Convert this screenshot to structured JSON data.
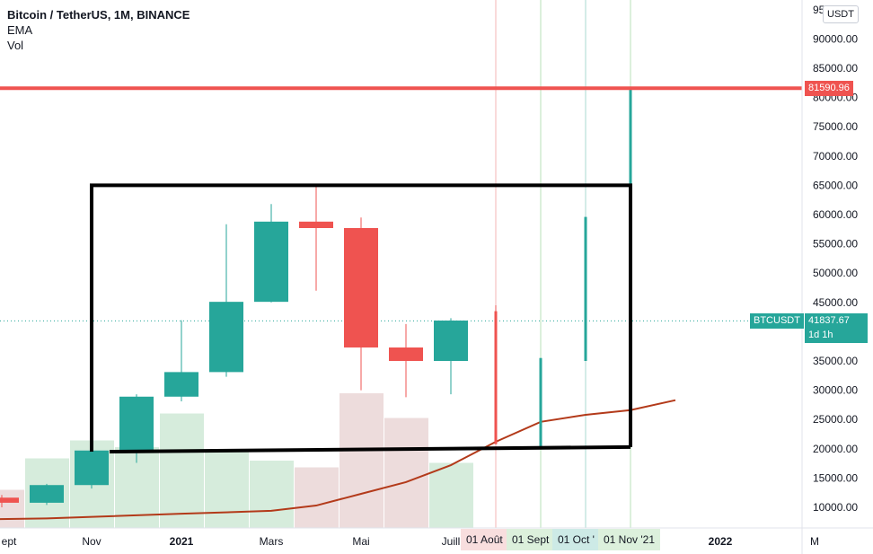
{
  "legend": {
    "title": "Bitcoin / TetherUS, 1M, BINANCE",
    "line2": "EMA",
    "line3": "Vol"
  },
  "currency_button": "USDT",
  "colors": {
    "up": "#26a69a",
    "down": "#ef5350",
    "ema": "#b33a1a",
    "horizontal_line": "#ef5350",
    "box": "#000000",
    "vol_up": "#d6ecdc",
    "vol_down": "#eddcdc",
    "last_price_tag": "#26a69a"
  },
  "price_tags": {
    "horizontal_line_value": "81590.96",
    "symbol": "BTCUSDT",
    "last_price": "41837.67",
    "countdown": "1d 1h"
  },
  "time_tags": [
    "01 Août",
    "01 Sept",
    "01 Oct '",
    "01 Nov '21"
  ],
  "chart_data": {
    "type": "candlestick",
    "title": "Bitcoin / TetherUS, 1M, BINANCE",
    "indicators": [
      "EMA",
      "Vol"
    ],
    "x_axis_labels": [
      "ept",
      "Nov",
      "2021",
      "Mars",
      "Mai",
      "Juill",
      "01 Août",
      "01 Sept",
      "01 Oct '",
      "01 Nov '21",
      "2022",
      "M"
    ],
    "y_axis_labels": [
      "95",
      "90000.00",
      "85000.00",
      "80000.00",
      "75000.00",
      "70000.00",
      "65000.00",
      "60000.00",
      "55000.00",
      "50000.00",
      "45000.00",
      "40000.00",
      "35000.00",
      "30000.00",
      "25000.00",
      "20000.00",
      "15000.00",
      "10000.00"
    ],
    "ylim": [
      5000,
      95000
    ],
    "grid": false,
    "candles": [
      {
        "date": "2020-09",
        "open": 11650,
        "high": 12100,
        "low": 10000,
        "close": 10780
      },
      {
        "date": "2020-10",
        "open": 10780,
        "high": 14000,
        "low": 10400,
        "close": 13800
      },
      {
        "date": "2020-11",
        "open": 13800,
        "high": 19860,
        "low": 13200,
        "close": 19700
      },
      {
        "date": "2020-12",
        "open": 19700,
        "high": 29300,
        "low": 17600,
        "close": 28900
      },
      {
        "date": "2021-01",
        "open": 28900,
        "high": 41950,
        "low": 28100,
        "close": 33100
      },
      {
        "date": "2021-02",
        "open": 33100,
        "high": 58350,
        "low": 32300,
        "close": 45100
      },
      {
        "date": "2021-03",
        "open": 45100,
        "high": 61800,
        "low": 45000,
        "close": 58800
      },
      {
        "date": "2021-04",
        "open": 58800,
        "high": 64850,
        "low": 47000,
        "close": 57700
      },
      {
        "date": "2021-05",
        "open": 57700,
        "high": 59500,
        "low": 30000,
        "close": 37300
      },
      {
        "date": "2021-06",
        "open": 37300,
        "high": 41300,
        "low": 28800,
        "close": 35000
      },
      {
        "date": "2021-07",
        "open": 35000,
        "high": 42300,
        "low": 29300,
        "close": 41900
      },
      {
        "date": "2021-08",
        "open": 43500,
        "high": 44500,
        "low": 20800,
        "close": 20800
      },
      {
        "date": "2021-09",
        "open": 20400,
        "high": 35500,
        "low": 20400,
        "close": 35500
      },
      {
        "date": "2021-10",
        "open": 35000,
        "high": 59600,
        "low": 35000,
        "close": 59600
      },
      {
        "date": "2021-11",
        "open": 65000,
        "high": 81590,
        "low": 65000,
        "close": 81590
      }
    ],
    "volume_relative": [
      0.17,
      0.31,
      0.39,
      0.36,
      0.51,
      0.34,
      0.3,
      0.27,
      0.6,
      0.49,
      0.29
    ],
    "ema": [
      {
        "date": "2020-07",
        "value": 7800
      },
      {
        "date": "2020-10",
        "value": 8100
      },
      {
        "date": "2021-01",
        "value": 8900
      },
      {
        "date": "2021-03",
        "value": 9400
      },
      {
        "date": "2021-04",
        "value": 10300
      },
      {
        "date": "2021-05",
        "value": 12300
      },
      {
        "date": "2021-06",
        "value": 14300
      },
      {
        "date": "2021-07",
        "value": 17200
      },
      {
        "date": "2021-08",
        "value": 21200
      },
      {
        "date": "2021-09",
        "value": 24600
      },
      {
        "date": "2021-10",
        "value": 25800
      },
      {
        "date": "2021-11",
        "value": 26600
      },
      {
        "date": "2021-12",
        "value": 28300
      }
    ],
    "horizontal_line": 81590.96,
    "last_price": 41837.67,
    "rectangle": {
      "date_from": "2020-11",
      "date_to": "2021-11",
      "top": 65000,
      "bottom_left": 19500,
      "bottom_right": 20300
    }
  }
}
